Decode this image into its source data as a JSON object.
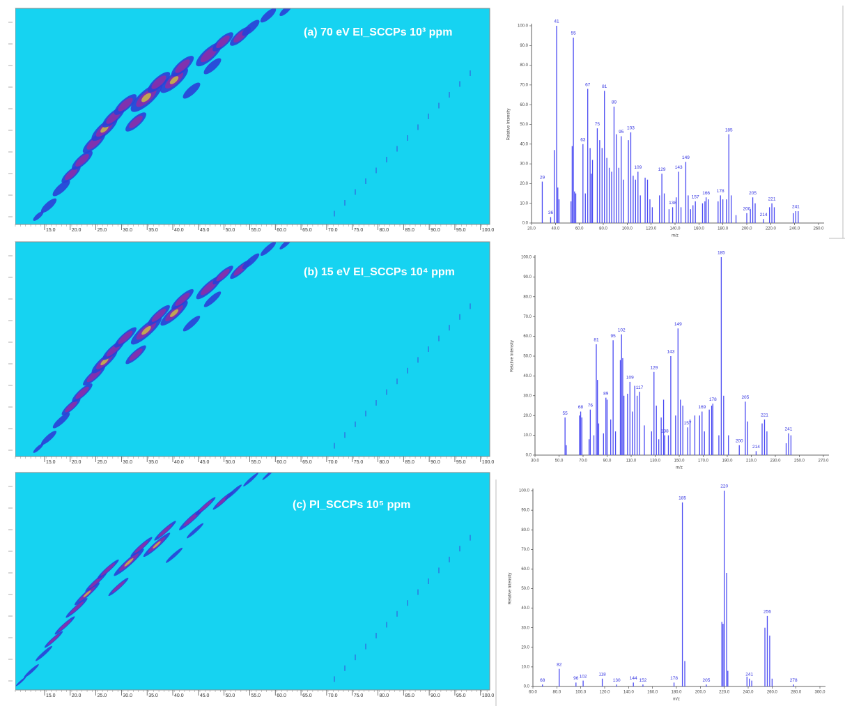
{
  "contour_plots": [
    {
      "type": "contour",
      "title": "(a) 70 eV EI_SCCPs 10³ ppm",
      "xlim": [
        9.3,
        101.8
      ],
      "xticks": [
        {
          "value": 15,
          "label": "15.0"
        },
        {
          "value": 20,
          "label": "20.0"
        },
        {
          "value": 25,
          "label": "25.0"
        },
        {
          "value": 30,
          "label": "30.0"
        },
        {
          "value": 35,
          "label": "35.0"
        },
        {
          "value": 40,
          "label": "40.0"
        },
        {
          "value": 45,
          "label": "45.0"
        },
        {
          "value": 50,
          "label": "50.0"
        },
        {
          "value": 55,
          "label": "55.0"
        },
        {
          "value": 60,
          "label": "60.0"
        },
        {
          "value": 65,
          "label": "65.0"
        },
        {
          "value": 70,
          "label": "70.0"
        },
        {
          "value": 75,
          "label": "75.0"
        },
        {
          "value": 80,
          "label": "80.0"
        },
        {
          "value": 85,
          "label": "85.0"
        },
        {
          "value": 90,
          "label": "90.0"
        },
        {
          "value": 95,
          "label": "95.0"
        },
        {
          "value": 100,
          "label": "100.0"
        }
      ]
    },
    {
      "type": "contour",
      "title": "(b) 15 eV EI_SCCPs 10⁴ ppm",
      "xlim": [
        9.3,
        101.8
      ],
      "xticks": [
        {
          "value": 15,
          "label": "15.0"
        },
        {
          "value": 20,
          "label": "20.0"
        },
        {
          "value": 25,
          "label": "25.0"
        },
        {
          "value": 30,
          "label": "30.0"
        },
        {
          "value": 35,
          "label": "35.0"
        },
        {
          "value": 40,
          "label": "40.0"
        },
        {
          "value": 45,
          "label": "45.0"
        },
        {
          "value": 50,
          "label": "50.0"
        },
        {
          "value": 55,
          "label": "55.0"
        },
        {
          "value": 60,
          "label": "60.0"
        },
        {
          "value": 65,
          "label": "65.0"
        },
        {
          "value": 70,
          "label": "70.0"
        },
        {
          "value": 75,
          "label": "75.0"
        },
        {
          "value": 80,
          "label": "80.0"
        },
        {
          "value": 85,
          "label": "85.0"
        },
        {
          "value": 90,
          "label": "90.0"
        },
        {
          "value": 95,
          "label": "95.0"
        },
        {
          "value": 100,
          "label": "100.0"
        }
      ]
    },
    {
      "type": "contour",
      "title": "(c) PI_SCCPs 10⁵ ppm",
      "xlim": [
        9.3,
        101.8
      ],
      "xticks": [
        {
          "value": 15,
          "label": "15.0"
        },
        {
          "value": 20,
          "label": "20.0"
        },
        {
          "value": 25,
          "label": "25.0"
        },
        {
          "value": 30,
          "label": "30.0"
        },
        {
          "value": 35,
          "label": "35.0"
        },
        {
          "value": 40,
          "label": "40.0"
        },
        {
          "value": 45,
          "label": "45.0"
        },
        {
          "value": 50,
          "label": "50.0"
        },
        {
          "value": 55,
          "label": "55.0"
        },
        {
          "value": 60,
          "label": "60.0"
        },
        {
          "value": 65,
          "label": "65.0"
        },
        {
          "value": 70,
          "label": "70.0"
        },
        {
          "value": 75,
          "label": "75.0"
        },
        {
          "value": 80,
          "label": "80.0"
        },
        {
          "value": 85,
          "label": "85.0"
        },
        {
          "value": 90,
          "label": "90.0"
        },
        {
          "value": 95,
          "label": "95.0"
        },
        {
          "value": 100,
          "label": "100.0"
        }
      ]
    }
  ],
  "chart_data": [
    {
      "type": "spectrum",
      "xlabel": "m/z",
      "ylabel": "Relative Intensity",
      "color": "#4a4af2",
      "xlim": [
        20,
        260
      ],
      "ylim": [
        0,
        100
      ],
      "xticks": [
        {
          "value": 20,
          "label": "20.0"
        },
        {
          "value": 40,
          "label": "40.0"
        },
        {
          "value": 60,
          "label": "60.0"
        },
        {
          "value": 80,
          "label": "80.0"
        },
        {
          "value": 100,
          "label": "100.0"
        },
        {
          "value": 120,
          "label": "120.0"
        },
        {
          "value": 140,
          "label": "140.0"
        },
        {
          "value": 160,
          "label": "160.0"
        },
        {
          "value": 180,
          "label": "180.0"
        },
        {
          "value": 200,
          "label": "200.0"
        },
        {
          "value": 220,
          "label": "220.0"
        },
        {
          "value": 240,
          "label": "240.0"
        },
        {
          "value": 260,
          "label": "260.0"
        }
      ],
      "yticks": [
        {
          "value": 0,
          "label": "0.0"
        },
        {
          "value": 10,
          "label": "10.0"
        },
        {
          "value": 20,
          "label": "20.0"
        },
        {
          "value": 30,
          "label": "30.0"
        },
        {
          "value": 40,
          "label": "40.0"
        },
        {
          "value": 50,
          "label": "50.0"
        },
        {
          "value": 60,
          "label": "60.0"
        },
        {
          "value": 70,
          "label": "70.0"
        },
        {
          "value": 80,
          "label": "80.0"
        },
        {
          "value": 90,
          "label": "90.0"
        },
        {
          "value": 100,
          "label": "100.0"
        }
      ],
      "labeled_peaks": {
        "x": [
          29,
          36,
          41,
          55,
          63,
          67,
          75,
          81,
          89,
          95,
          103,
          109,
          129,
          138,
          143,
          149,
          157,
          166,
          178,
          185,
          200,
          205,
          214,
          221,
          241
        ],
        "values": [
          21,
          3,
          100,
          94,
          40,
          68,
          48,
          67,
          59,
          44,
          46,
          26,
          25,
          8,
          26,
          31,
          11,
          13,
          14,
          45,
          5,
          13,
          2,
          10,
          6
        ]
      },
      "other_peaks": {
        "x": [
          39,
          42,
          43,
          53,
          54,
          56,
          57,
          65,
          69,
          70,
          71,
          77,
          79,
          83,
          85,
          87,
          91,
          93,
          97,
          101,
          105,
          107,
          111,
          115,
          117,
          119,
          121,
          127,
          131,
          135,
          141,
          145,
          151,
          153,
          155,
          163,
          165,
          168,
          176,
          180,
          183,
          187,
          191,
          203,
          207,
          219,
          223,
          239,
          243
        ],
        "values": [
          37,
          18,
          12,
          11,
          39,
          16,
          15,
          15,
          38,
          25,
          32,
          42,
          38,
          33,
          28,
          26,
          45,
          28,
          22,
          42,
          24,
          22,
          14,
          23,
          22,
          12,
          8,
          14,
          15,
          7,
          13,
          8,
          14,
          7,
          9,
          10,
          11,
          12,
          11,
          12,
          12,
          14,
          4,
          7,
          10,
          8,
          8,
          5,
          6
        ]
      }
    },
    {
      "type": "spectrum",
      "xlabel": "m/z",
      "ylabel": "Relative Intensity",
      "color": "#4a4af2",
      "xlim": [
        30,
        270
      ],
      "ylim": [
        0,
        100
      ],
      "xticks": [
        {
          "value": 30,
          "label": "30.0"
        },
        {
          "value": 50,
          "label": "50.0"
        },
        {
          "value": 70,
          "label": "70.0"
        },
        {
          "value": 90,
          "label": "90.0"
        },
        {
          "value": 110,
          "label": "110.0"
        },
        {
          "value": 130,
          "label": "130.0"
        },
        {
          "value": 150,
          "label": "150.0"
        },
        {
          "value": 170,
          "label": "170.0"
        },
        {
          "value": 190,
          "label": "190.0"
        },
        {
          "value": 210,
          "label": "210.0"
        },
        {
          "value": 230,
          "label": "230.0"
        },
        {
          "value": 250,
          "label": "250.0"
        },
        {
          "value": 270,
          "label": "270.0"
        }
      ],
      "yticks": [
        {
          "value": 0,
          "label": "0.0"
        },
        {
          "value": 10,
          "label": "10.0"
        },
        {
          "value": 20,
          "label": "20.0"
        },
        {
          "value": 30,
          "label": "30.0"
        },
        {
          "value": 40,
          "label": "40.0"
        },
        {
          "value": 50,
          "label": "50.0"
        },
        {
          "value": 60,
          "label": "60.0"
        },
        {
          "value": 70,
          "label": "70.0"
        },
        {
          "value": 80,
          "label": "80.0"
        },
        {
          "value": 90,
          "label": "90.0"
        },
        {
          "value": 100,
          "label": "100.0"
        }
      ],
      "labeled_peaks": {
        "x": [
          55,
          68,
          76,
          81,
          89,
          95,
          102,
          109,
          117,
          129,
          138,
          143,
          149,
          157,
          169,
          178,
          185,
          200,
          205,
          214,
          221,
          241
        ],
        "values": [
          19,
          22,
          23,
          56,
          29,
          58,
          61,
          37,
          32,
          42,
          10,
          50,
          64,
          14,
          22,
          26,
          100,
          5,
          27,
          2,
          18,
          11
        ]
      },
      "other_peaks": {
        "x": [
          56,
          67,
          69,
          75,
          79,
          82,
          83,
          87,
          90,
          93,
          97,
          101,
          103,
          104,
          107,
          111,
          113,
          115,
          121,
          127,
          131,
          133,
          135,
          137,
          141,
          147,
          151,
          153,
          159,
          163,
          167,
          171,
          175,
          177,
          183,
          187,
          191,
          207,
          219,
          223,
          239,
          243
        ],
        "values": [
          5,
          20,
          19,
          8,
          10,
          38,
          16,
          11,
          28,
          18,
          12,
          48,
          49,
          30,
          31,
          22,
          35,
          30,
          15,
          12,
          25,
          8,
          19,
          28,
          10,
          20,
          28,
          25,
          18,
          20,
          20,
          12,
          23,
          25,
          10,
          30,
          10,
          17,
          16,
          12,
          6,
          10
        ]
      }
    },
    {
      "type": "spectrum",
      "xlabel": "m/z",
      "ylabel": "Relative Intensity",
      "color": "#4a4af2",
      "xlim": [
        60,
        300
      ],
      "ylim": [
        0,
        100
      ],
      "xticks": [
        {
          "value": 60,
          "label": "60.0"
        },
        {
          "value": 80,
          "label": "80.0"
        },
        {
          "value": 100,
          "label": "100.0"
        },
        {
          "value": 120,
          "label": "120.0"
        },
        {
          "value": 140,
          "label": "140.0"
        },
        {
          "value": 160,
          "label": "160.0"
        },
        {
          "value": 180,
          "label": "180.0"
        },
        {
          "value": 200,
          "label": "200.0"
        },
        {
          "value": 220,
          "label": "220.0"
        },
        {
          "value": 240,
          "label": "240.0"
        },
        {
          "value": 260,
          "label": "260.0"
        },
        {
          "value": 280,
          "label": "280.0"
        },
        {
          "value": 300,
          "label": "300.0"
        }
      ],
      "yticks": [
        {
          "value": 0,
          "label": "0.0"
        },
        {
          "value": 10,
          "label": "10.0"
        },
        {
          "value": 20,
          "label": "20.0"
        },
        {
          "value": 30,
          "label": "30.0"
        },
        {
          "value": 40,
          "label": "40.0"
        },
        {
          "value": 50,
          "label": "50.0"
        },
        {
          "value": 60,
          "label": "60.0"
        },
        {
          "value": 70,
          "label": "70.0"
        },
        {
          "value": 80,
          "label": "80.0"
        },
        {
          "value": 90,
          "label": "90.0"
        },
        {
          "value": 100,
          "label": "100.0"
        }
      ],
      "labeled_peaks": {
        "x": [
          68,
          82,
          96,
          102,
          118,
          130,
          144,
          152,
          178,
          185,
          205,
          220,
          241,
          256,
          278
        ],
        "values": [
          1,
          9,
          2,
          3,
          4,
          1,
          2,
          1,
          2,
          94,
          1,
          100,
          4,
          36,
          1
        ]
      },
      "other_peaks": {
        "x": [
          187,
          218,
          219,
          222,
          223,
          239,
          243,
          254,
          258,
          260
        ],
        "values": [
          13,
          33,
          32,
          58,
          8,
          5,
          3,
          30,
          26,
          4
        ]
      }
    }
  ]
}
